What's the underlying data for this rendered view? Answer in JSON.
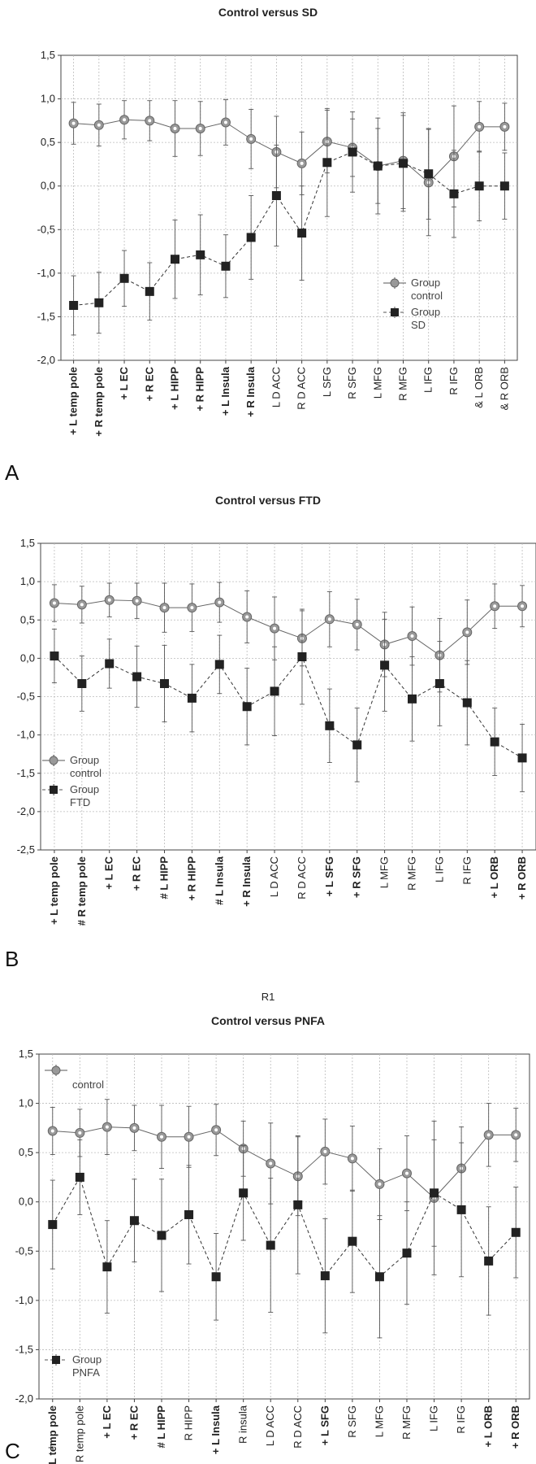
{
  "chart_data": [
    {
      "type": "line",
      "title": "Control versus SD",
      "panel_letter": "A",
      "xlabel": "",
      "ylim": [
        -2.0,
        1.5
      ],
      "yticks": [
        "1,5",
        "1,0",
        "0,5",
        "0,0",
        "-0,5",
        "-1,0",
        "-1,5",
        "-2,0"
      ],
      "grid": true,
      "legend_position": "middle-right",
      "categories": [
        "+ L temp pole",
        "+ R temp pole",
        "+ L EC",
        "+ R EC",
        "+ L HIPP",
        "+ R HIPP",
        "+ L Insula",
        "+ R Insula",
        "L D ACC",
        "R D ACC",
        "L SFG",
        "R SFG",
        "L MFG",
        "R MFG",
        "L IFG",
        "R IFG",
        "& L ORB",
        "& R ORB"
      ],
      "bold_categories": [
        true,
        true,
        true,
        true,
        true,
        true,
        true,
        true,
        false,
        false,
        false,
        false,
        false,
        false,
        false,
        false,
        false,
        false
      ],
      "series": [
        {
          "name": "Group control",
          "marker": "circle",
          "line": "solid",
          "values": [
            0.72,
            0.7,
            0.76,
            0.75,
            0.66,
            0.66,
            0.73,
            0.54,
            0.39,
            0.26,
            0.51,
            0.44,
            0.23,
            0.29,
            0.04,
            0.34,
            0.68,
            0.68
          ],
          "err": [
            0.24,
            0.24,
            0.22,
            0.23,
            0.32,
            0.31,
            0.26,
            0.34,
            0.41,
            0.36,
            0.36,
            0.33,
            0.55,
            0.55,
            0.61,
            0.58,
            0.29,
            0.27
          ]
        },
        {
          "name": "Group SD",
          "marker": "square",
          "line": "dashed",
          "values": [
            -1.37,
            -1.34,
            -1.06,
            -1.21,
            -0.84,
            -0.79,
            -0.92,
            -0.59,
            -0.11,
            -0.54,
            0.27,
            0.39,
            0.23,
            0.26,
            0.14,
            -0.09,
            0.0,
            0.0
          ],
          "err": [
            0.34,
            0.35,
            0.32,
            0.33,
            0.45,
            0.46,
            0.36,
            0.48,
            0.58,
            0.54,
            0.62,
            0.46,
            0.43,
            0.55,
            0.52,
            0.5,
            0.4,
            0.38
          ]
        }
      ]
    },
    {
      "type": "line",
      "title": "Control versus FTD",
      "panel_letter": "B",
      "xlabel": "R1",
      "ylim": [
        -2.5,
        1.5
      ],
      "yticks": [
        "1,5",
        "1,0",
        "0,5",
        "0,0",
        "-0,5",
        "-1,0",
        "-1,5",
        "-2,0",
        "-2,5"
      ],
      "grid": true,
      "legend_position": "lower-left",
      "categories": [
        "+ L temp pole",
        "# R temp pole",
        "+ L EC",
        "+ R EC",
        "# L HIPP",
        "+ R HIPP",
        "# L Insula",
        "+ R Insula",
        "L D ACC",
        "R D ACC",
        "+ L SFG",
        "+ R SFG",
        "L MFG",
        "R MFG",
        "L IFG",
        "R IFG",
        "+ L ORB",
        "+ R ORB"
      ],
      "bold_categories": [
        true,
        true,
        true,
        true,
        true,
        true,
        true,
        true,
        false,
        false,
        true,
        true,
        false,
        false,
        false,
        false,
        true,
        true
      ],
      "series": [
        {
          "name": "Group control",
          "marker": "circle",
          "line": "solid",
          "values": [
            0.72,
            0.7,
            0.76,
            0.75,
            0.66,
            0.66,
            0.73,
            0.54,
            0.39,
            0.26,
            0.51,
            0.44,
            0.18,
            0.29,
            0.04,
            0.34,
            0.68,
            0.68
          ],
          "err": [
            0.24,
            0.24,
            0.22,
            0.23,
            0.32,
            0.31,
            0.26,
            0.34,
            0.41,
            0.36,
            0.36,
            0.33,
            0.42,
            0.38,
            0.48,
            0.42,
            0.29,
            0.27
          ]
        },
        {
          "name": "Group FTD",
          "marker": "square",
          "line": "dashed",
          "values": [
            0.03,
            -0.33,
            -0.07,
            -0.24,
            -0.33,
            -0.52,
            -0.08,
            -0.63,
            -0.43,
            0.02,
            -0.88,
            -1.13,
            -0.09,
            -0.53,
            -0.33,
            -0.58,
            -1.09,
            -1.3
          ],
          "err": [
            0.35,
            0.36,
            0.32,
            0.4,
            0.5,
            0.44,
            0.38,
            0.5,
            0.58,
            0.62,
            0.48,
            0.48,
            0.6,
            0.55,
            0.55,
            0.55,
            0.44,
            0.44
          ]
        }
      ]
    },
    {
      "type": "line",
      "title": "Control versus PNFA",
      "panel_letter": "C",
      "xlabel": "",
      "ylim": [
        -2.0,
        1.5
      ],
      "yticks": [
        "1,5",
        "1,0",
        "0,5",
        "0,0",
        "-0,5",
        "-1,0",
        "-1,5",
        "-2,0"
      ],
      "grid": true,
      "legend_position": "split",
      "categories": [
        "+ L temp pole",
        "R temp pole",
        "+ L EC",
        "+ R EC",
        "# L HIPP",
        "R HIPP",
        "+ L Insula",
        "R insula",
        "L D ACC",
        "R D ACC",
        "+ L SFG",
        "R SFG",
        "L MFG",
        "R MFG",
        "L IFG",
        "R IFG",
        "+ L ORB",
        "+ R ORB"
      ],
      "bold_categories": [
        true,
        false,
        true,
        true,
        true,
        false,
        true,
        false,
        false,
        false,
        true,
        false,
        false,
        false,
        false,
        false,
        true,
        true
      ],
      "extra_label": "+",
      "series": [
        {
          "name": "control",
          "marker": "circle",
          "line": "solid",
          "values": [
            0.72,
            0.7,
            0.76,
            0.75,
            0.66,
            0.66,
            0.73,
            0.54,
            0.39,
            0.26,
            0.51,
            0.44,
            0.18,
            0.29,
            0.04,
            0.34,
            0.68,
            0.68
          ],
          "err": [
            0.24,
            0.24,
            0.28,
            0.23,
            0.32,
            0.31,
            0.26,
            0.28,
            0.41,
            0.4,
            0.33,
            0.33,
            0.36,
            0.38,
            0.78,
            0.42,
            0.32,
            0.27
          ]
        },
        {
          "name": "Group PNFA",
          "marker": "square",
          "line": "dashed",
          "values": [
            -0.23,
            0.25,
            -0.66,
            -0.19,
            -0.34,
            -0.13,
            -0.76,
            0.09,
            -0.44,
            -0.03,
            -0.75,
            -0.4,
            -0.76,
            -0.52,
            0.09,
            -0.08,
            -0.6,
            -0.31
          ],
          "err": [
            0.45,
            0.38,
            0.47,
            0.42,
            0.57,
            0.5,
            0.44,
            0.48,
            0.68,
            0.7,
            0.58,
            0.52,
            0.62,
            0.52,
            0.54,
            0.68,
            0.55,
            0.46
          ]
        }
      ]
    }
  ]
}
